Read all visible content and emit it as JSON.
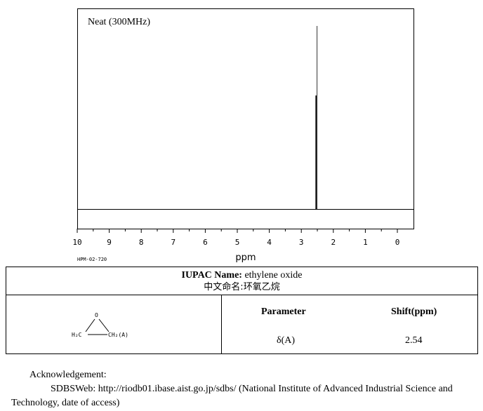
{
  "chart_data": {
    "type": "line",
    "title": "Neat (300MHz)",
    "xlabel": "ppm",
    "xlim": [
      10,
      0
    ],
    "x_reversed": true,
    "xticks": [
      "10",
      "9",
      "8",
      "7",
      "6",
      "5",
      "4",
      "3",
      "2",
      "1",
      "0"
    ],
    "peaks": [
      {
        "ppm": 2.54,
        "relative_intensity": 1.0
      }
    ],
    "integral_steps": [
      {
        "ppm": 2.54,
        "relative_height": 0.62
      }
    ],
    "grid": false,
    "legend": "none"
  },
  "spectrum_code": "HPM-02-720",
  "compound": {
    "iupac_label": "IUPAC Name:",
    "iupac_name": "ethylene oxide",
    "chinese_label": "中文命名:",
    "chinese_name": "环氧乙烷"
  },
  "structure": {
    "atom_o": "O",
    "atom_left": "H₂C",
    "atom_right": "CH₂(A)"
  },
  "table": {
    "headers": [
      "Parameter",
      "Shift(ppm)"
    ],
    "rows": [
      {
        "parameter": "δ(A)",
        "shift": "2.54"
      }
    ]
  },
  "acknowledgement": {
    "heading": "Acknowledgement:",
    "text": "SDBSWeb: http://riodb01.ibase.aist.go.jp/sdbs/ (National Institute of Advanced Industrial Science and Technology, date of access)"
  }
}
